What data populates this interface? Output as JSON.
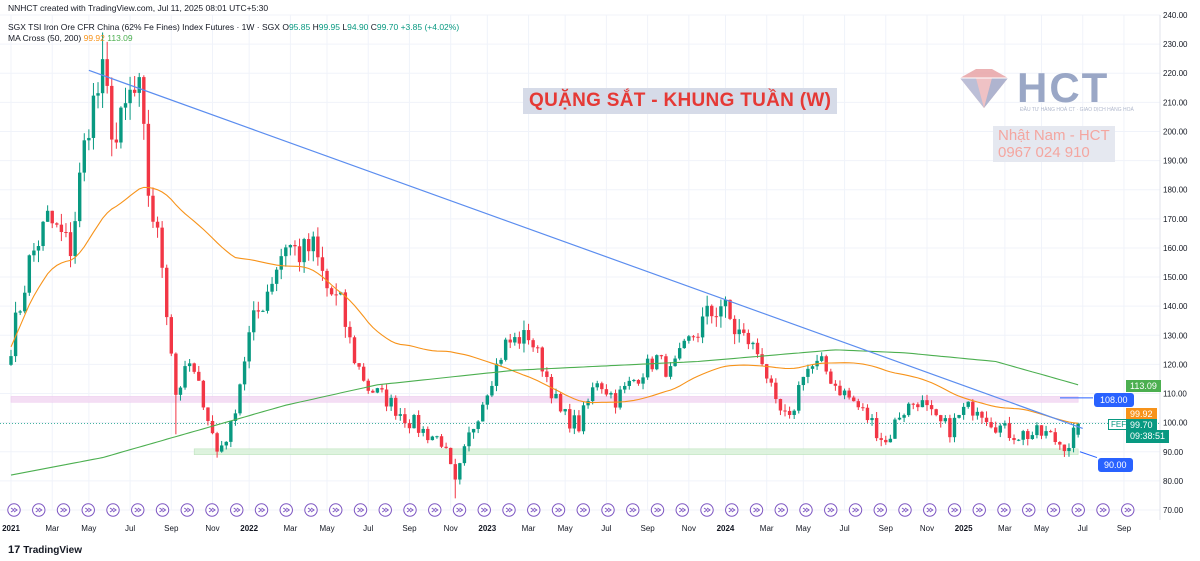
{
  "header": {
    "credit": "NNHCT created with TradingView.com, Jul 11, 2025 08:01 UTC+5:30",
    "symbol": "SGX TSI Iron Ore CFR China (62% Fe Fines) Index Futures · 1W · SGX",
    "o_label": "O",
    "o_value": "95.85",
    "h_label": "H",
    "h_value": "99.95",
    "l_label": "L",
    "l_value": "94.90",
    "c_label": "C",
    "c_value": "99.70",
    "change": "+3.85 (+4.02%)",
    "ma_label": "MA Cross (50, 200)",
    "ma_fast_value": "99.92",
    "ma_slow_value": "113.09"
  },
  "overlay": {
    "title": "QUẶNG SẮT - KHUNG TUẦN (W)",
    "logo_text": "HCT",
    "logo_subtext": "ĐẦU TƯ HÀNG HOÁ CT · GIAO DỊCH HÀNG HOÁ",
    "contact_name": "Nhật Nam - HCT",
    "contact_phone": "0967 024 910"
  },
  "price_tags": {
    "ma_slow": "113.09",
    "ma_fast": "99.92",
    "symbol_code": "FEFQ2025",
    "last_price": "99.70",
    "countdown": "09:38:51"
  },
  "callouts": {
    "upper": "108.00",
    "lower": "90.00"
  },
  "footer": {
    "brand": "TradingView",
    "logo_glyph": "17"
  },
  "colors": {
    "up": "#089981",
    "down": "#f23645",
    "ma_fast": "#f7931a",
    "ma_slow": "#4caf50",
    "trendline": "#5b8def",
    "resistance_zone": "#f3d9f3",
    "support_zone": "#d9f2d9",
    "event_icon": "#7e57c2"
  },
  "chart_data": {
    "type": "candlestick",
    "timeframe": "1W",
    "y_axis": {
      "ticks": [
        70,
        80,
        90,
        100,
        110,
        120,
        130,
        140,
        150,
        160,
        170,
        180,
        190,
        200,
        210,
        220,
        230,
        240
      ],
      "tick_labels": [
        "70.00",
        "80.00",
        "90.00",
        "100.00",
        "110.00",
        "120.00",
        "130.00",
        "140.00",
        "150.00",
        "160.00",
        "170.00",
        "180.00",
        "190.00",
        "200.00",
        "210.00",
        "220.00",
        "230.00",
        "240.00"
      ],
      "range": [
        70,
        240
      ]
    },
    "x_axis": {
      "labels": [
        "2021",
        "Mar",
        "May",
        "Jul",
        "Sep",
        "Nov",
        "2022",
        "Mar",
        "May",
        "Jul",
        "Sep",
        "Nov",
        "2023",
        "Mar",
        "May",
        "Jul",
        "Sep",
        "Nov",
        "2024",
        "Mar",
        "May",
        "Jul",
        "Sep",
        "Nov",
        "2025",
        "Mar",
        "May",
        "Jul",
        "Sep"
      ],
      "label_weeks": [
        0,
        9,
        17,
        26,
        35,
        44,
        52,
        61,
        69,
        78,
        87,
        96,
        104,
        113,
        121,
        130,
        139,
        148,
        156,
        165,
        173,
        182,
        191,
        200,
        208,
        217,
        225,
        234,
        243
      ],
      "bold": [
        "2021",
        "2022",
        "2023",
        "2024",
        "2025"
      ]
    },
    "anchors": [
      [
        0,
        126
      ],
      [
        4,
        155
      ],
      [
        8,
        170
      ],
      [
        13,
        160
      ],
      [
        17,
        205
      ],
      [
        20,
        218
      ],
      [
        23,
        196
      ],
      [
        26,
        212
      ],
      [
        28,
        212
      ],
      [
        30,
        180
      ],
      [
        33,
        155
      ],
      [
        36,
        110
      ],
      [
        39,
        120
      ],
      [
        42,
        108
      ],
      [
        45,
        90
      ],
      [
        48,
        98
      ],
      [
        52,
        130
      ],
      [
        56,
        146
      ],
      [
        60,
        162
      ],
      [
        63,
        158
      ],
      [
        66,
        160
      ],
      [
        69,
        146
      ],
      [
        72,
        140
      ],
      [
        75,
        122
      ],
      [
        78,
        112
      ],
      [
        82,
        108
      ],
      [
        86,
        102
      ],
      [
        90,
        97
      ],
      [
        94,
        94
      ],
      [
        97,
        78
      ],
      [
        100,
        95
      ],
      [
        104,
        112
      ],
      [
        108,
        127
      ],
      [
        113,
        130
      ],
      [
        116,
        120
      ],
      [
        120,
        103
      ],
      [
        124,
        99
      ],
      [
        128,
        115
      ],
      [
        132,
        108
      ],
      [
        135,
        113
      ],
      [
        138,
        118
      ],
      [
        141,
        122
      ],
      [
        144,
        117
      ],
      [
        148,
        128
      ],
      [
        152,
        136
      ],
      [
        155,
        141
      ],
      [
        158,
        132
      ],
      [
        161,
        128
      ],
      [
        164,
        122
      ],
      [
        167,
        105
      ],
      [
        170,
        100
      ],
      [
        173,
        118
      ],
      [
        177,
        120
      ],
      [
        180,
        113
      ],
      [
        184,
        107
      ],
      [
        188,
        100
      ],
      [
        191,
        93
      ],
      [
        194,
        103
      ],
      [
        198,
        108
      ],
      [
        202,
        100
      ],
      [
        205,
        98
      ],
      [
        208,
        104
      ],
      [
        211,
        106
      ],
      [
        214,
        101
      ],
      [
        217,
        97
      ],
      [
        220,
        96
      ],
      [
        223,
        96
      ],
      [
        226,
        96
      ],
      [
        229,
        93
      ],
      [
        231,
        93
      ],
      [
        233,
        99.7
      ]
    ],
    "last_candle": {
      "open": 95.85,
      "high": 99.95,
      "low": 94.9,
      "close": 99.7
    },
    "series": [
      {
        "name": "MA 50",
        "period": 50,
        "color": "#f7931a",
        "last": 99.92
      },
      {
        "name": "MA 200",
        "period": 200,
        "color": "#4caf50",
        "last": 113.09
      }
    ],
    "trendline": {
      "start": [
        17,
        221
      ],
      "end": [
        234,
        98
      ]
    },
    "zones": [
      {
        "name": "resistance",
        "from": 107,
        "to": 109
      },
      {
        "name": "support",
        "from": 89,
        "to": 91
      }
    ],
    "grid": true
  }
}
